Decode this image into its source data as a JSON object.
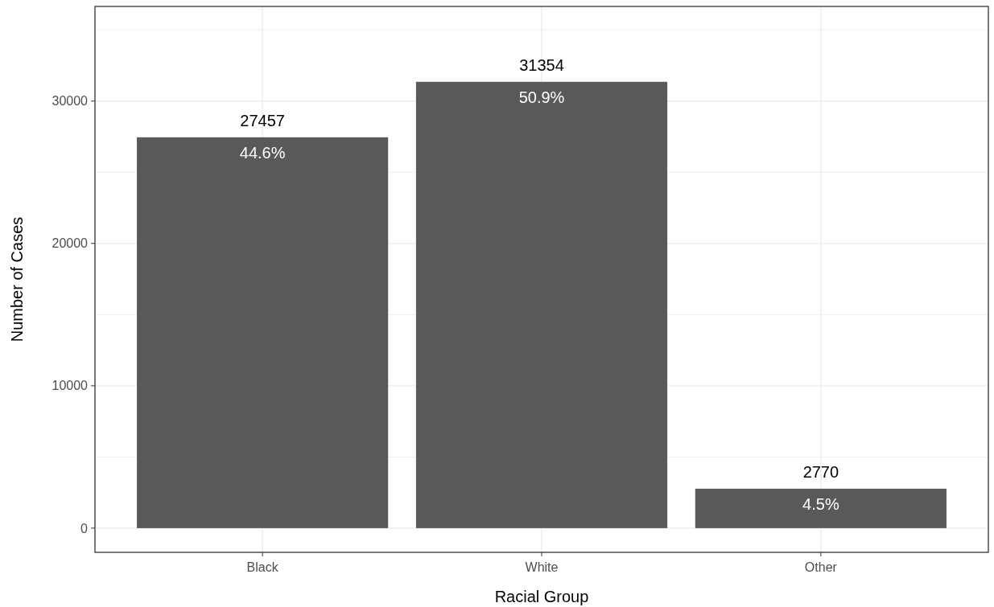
{
  "chart_data": {
    "type": "bar",
    "xlabel": "Racial Group",
    "ylabel": "Number of Cases",
    "categories": [
      "Black",
      "White",
      "Other"
    ],
    "values": [
      27457,
      31354,
      2770
    ],
    "color": "#595959",
    "data_labels": true,
    "annotations": [
      {
        "text": "44.6%",
        "x": "Black",
        "y": 27457
      },
      {
        "text": "50.9%",
        "x": "White",
        "y": 31354
      },
      {
        "text": "4.5%",
        "x": "Other",
        "y": 2770
      }
    ],
    "ylim": [
      -1700,
      36650
    ],
    "yticks": [
      0,
      {
        "value": 5000,
        "label": null
      },
      10000,
      {
        "value": 15000,
        "label": null
      },
      20000,
      {
        "value": 25000,
        "label": null
      },
      30000,
      {
        "value": 35000,
        "label": null
      }
    ],
    "grid": true
  }
}
